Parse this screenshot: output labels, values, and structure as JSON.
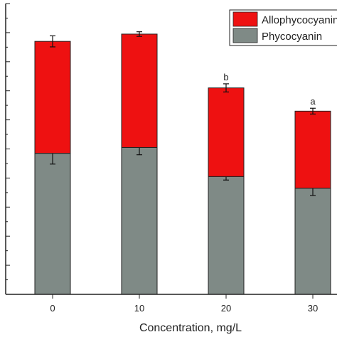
{
  "chart_data": {
    "type": "bar",
    "stacked": true,
    "categories": [
      "0",
      "10",
      "20",
      "30"
    ],
    "xlabel": "Concentration, mg/L",
    "ylim": [
      0,
      100
    ],
    "grid": false,
    "legend_position": "top-right",
    "series": [
      {
        "name": "Phycocyanin",
        "color": "#7f8a86",
        "values": [
          48.5,
          50.5,
          40.5,
          36.5
        ],
        "errors": [
          3.7,
          2.5,
          1.2,
          2.5
        ]
      },
      {
        "name": "Allophycocyanin",
        "color": "#ee1111",
        "values": [
          38.5,
          39.0,
          30.5,
          26.5
        ],
        "errors": [
          1.9,
          0.8,
          1.4,
          1.0
        ]
      }
    ],
    "annotations": [
      {
        "category": "20",
        "text": "b"
      },
      {
        "category": "30",
        "text": "a"
      }
    ]
  }
}
